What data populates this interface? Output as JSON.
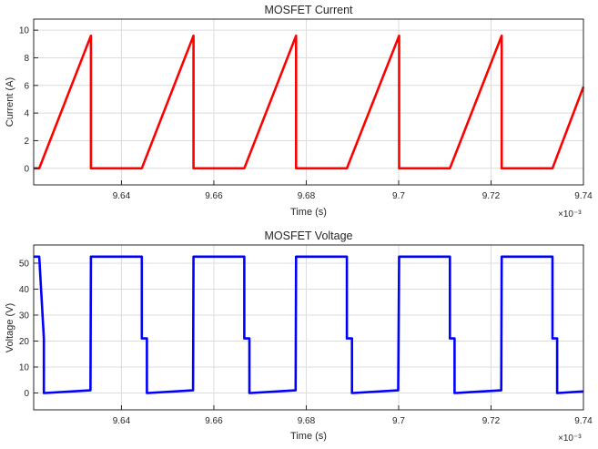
{
  "chart_data": [
    {
      "type": "line",
      "title": "MOSFET Current",
      "xlabel": "Time (s)",
      "ylabel": "Current (A)",
      "x_exponent": "×10⁻³",
      "xlim": [
        9.621,
        9.74
      ],
      "ylim": [
        -1.2,
        10.8
      ],
      "x_ticks": [
        "9.64",
        "9.66",
        "9.68",
        "9.7",
        "9.72",
        "9.74"
      ],
      "x_tick_values": [
        9.64,
        9.66,
        9.68,
        9.7,
        9.72,
        9.74
      ],
      "y_ticks": [
        "0",
        "2",
        "4",
        "6",
        "8",
        "10"
      ],
      "y_tick_values": [
        0,
        2,
        4,
        6,
        8,
        10
      ],
      "grid": true,
      "series": [
        {
          "color": "#ff0000",
          "x": [
            9.621,
            9.6222,
            9.6334,
            9.6334,
            9.6444,
            9.6556,
            9.6556,
            9.6666,
            9.6778,
            9.6778,
            9.6888,
            9.7001,
            9.7001,
            9.7111,
            9.7223,
            9.7223,
            9.7333,
            9.74
          ],
          "y": [
            0,
            0,
            9.6,
            0,
            0,
            9.6,
            0,
            0,
            9.6,
            0,
            0,
            9.6,
            0,
            0,
            9.6,
            0,
            0,
            5.9
          ]
        }
      ]
    },
    {
      "type": "line",
      "title": "MOSFET Voltage",
      "xlabel": "Time (s)",
      "ylabel": "Voltage (V)",
      "x_exponent": "×10⁻³",
      "xlim": [
        9.621,
        9.74
      ],
      "ylim": [
        -6.5,
        57
      ],
      "x_ticks": [
        "9.64",
        "9.66",
        "9.68",
        "9.7",
        "9.72",
        "9.74"
      ],
      "x_tick_values": [
        9.64,
        9.66,
        9.68,
        9.7,
        9.72,
        9.74
      ],
      "y_ticks": [
        "0",
        "10",
        "20",
        "30",
        "40",
        "50"
      ],
      "y_tick_values": [
        0,
        10,
        20,
        30,
        40,
        50
      ],
      "grid": true,
      "series": [
        {
          "color": "#0000ff",
          "x": [
            9.621,
            9.6222,
            9.6232,
            9.6232,
            9.6235,
            9.6333,
            9.6334,
            9.6444,
            9.6444,
            9.6455,
            9.6455,
            9.6458,
            9.6555,
            9.6556,
            9.6666,
            9.6666,
            9.6677,
            9.6677,
            9.668,
            9.6777,
            9.6778,
            9.6888,
            9.6888,
            9.6899,
            9.6899,
            9.6902,
            9.6999,
            9.7001,
            9.7111,
            9.7111,
            9.7121,
            9.7121,
            9.7124,
            9.7222,
            9.7223,
            9.7333,
            9.7333,
            9.7343,
            9.7343,
            9.7346,
            9.74
          ],
          "y": [
            52.5,
            52.5,
            21,
            0,
            0,
            1,
            52.5,
            52.5,
            21,
            21,
            0,
            0,
            1,
            52.5,
            52.5,
            21,
            21,
            0,
            0,
            1,
            52.5,
            52.5,
            21,
            21,
            0,
            0,
            1,
            52.5,
            52.5,
            21,
            21,
            0,
            0,
            1,
            52.5,
            52.5,
            21,
            21,
            0,
            0,
            0.6
          ]
        }
      ]
    }
  ]
}
